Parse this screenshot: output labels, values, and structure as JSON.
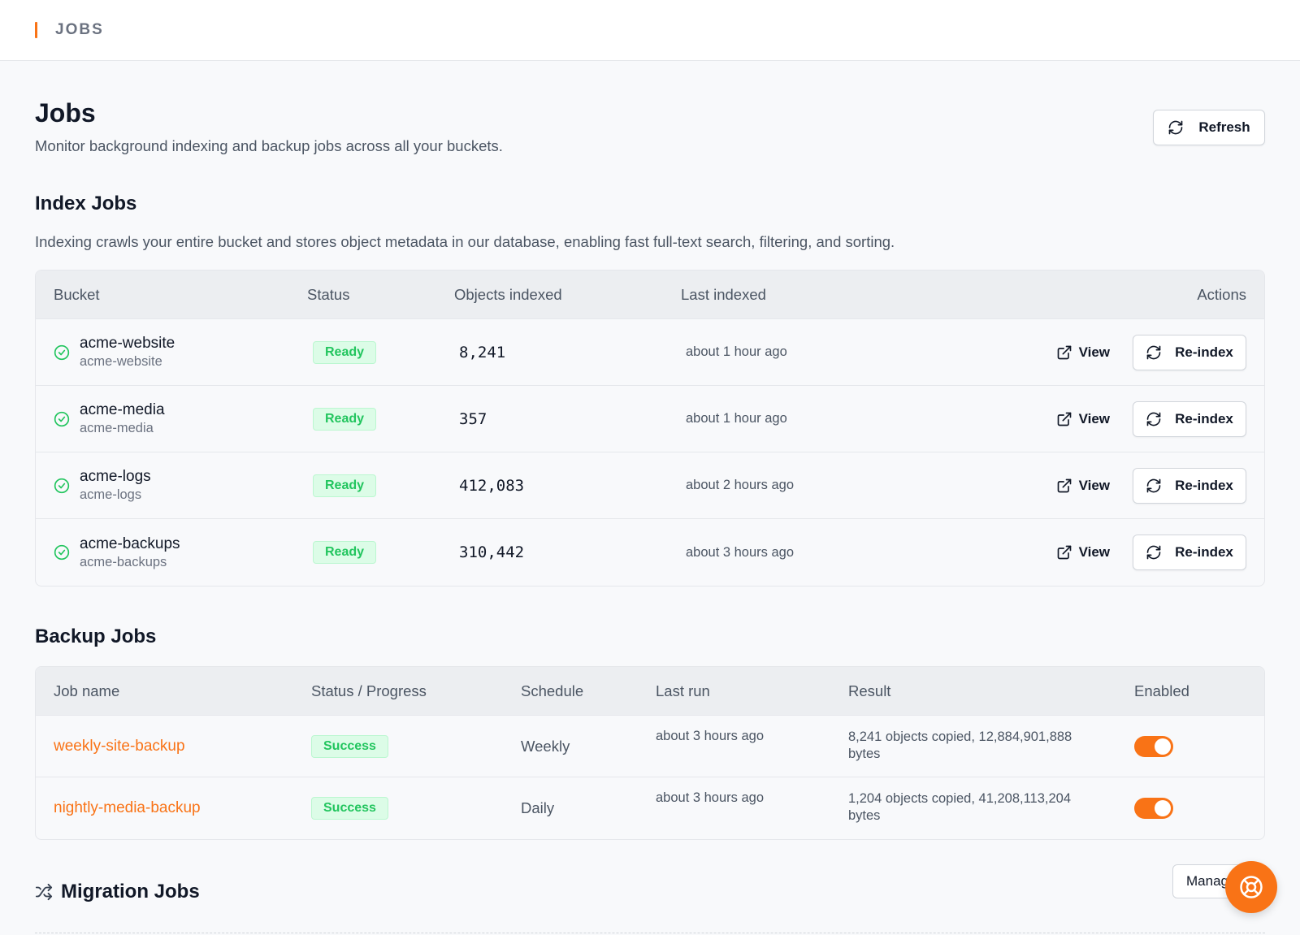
{
  "topbar": {
    "breadcrumb": "JOBS"
  },
  "header": {
    "title": "Jobs",
    "subtitle": "Monitor background indexing and backup jobs across all your buckets.",
    "refresh_label": "Refresh"
  },
  "index_jobs": {
    "title": "Index Jobs",
    "description": "Indexing crawls your entire bucket and stores object metadata in our database, enabling fast full-text search, filtering, and sorting.",
    "columns": {
      "bucket": "Bucket",
      "status": "Status",
      "objects": "Objects indexed",
      "last": "Last indexed",
      "actions": "Actions"
    },
    "view_label": "View",
    "reindex_label": "Re-index",
    "rows": [
      {
        "name": "acme-website",
        "sub": "acme-website",
        "status": "Ready",
        "count": "8,241",
        "last": "about 1 hour ago"
      },
      {
        "name": "acme-media",
        "sub": "acme-media",
        "status": "Ready",
        "count": "357",
        "last": "about 1 hour ago"
      },
      {
        "name": "acme-logs",
        "sub": "acme-logs",
        "status": "Ready",
        "count": "412,083",
        "last": "about 2 hours ago"
      },
      {
        "name": "acme-backups",
        "sub": "acme-backups",
        "status": "Ready",
        "count": "310,442",
        "last": "about 3 hours ago"
      }
    ]
  },
  "backup_jobs": {
    "title": "Backup Jobs",
    "columns": {
      "name": "Job name",
      "status": "Status / Progress",
      "schedule": "Schedule",
      "last": "Last run",
      "result": "Result",
      "enabled": "Enabled"
    },
    "rows": [
      {
        "name": "weekly-site-backup",
        "status": "Success",
        "schedule": "Weekly",
        "last": "about 3 hours ago",
        "result": "8,241 objects copied, 12,884,901,888 bytes",
        "enabled": true
      },
      {
        "name": "nightly-media-backup",
        "status": "Success",
        "schedule": "Daily",
        "last": "about 3 hours ago",
        "result": "1,204 objects copied, 41,208,113,204 bytes",
        "enabled": true
      }
    ]
  },
  "migration_jobs": {
    "title": "Migration Jobs",
    "manage_label": "Manage"
  },
  "colors": {
    "accent": "#f97316",
    "success_bg": "#dcfce7",
    "success_fg": "#22c55e"
  },
  "icons": {
    "refresh": "refresh-icon",
    "view": "external-link-icon",
    "check": "check-circle-icon",
    "shuffle": "shuffle-icon",
    "help": "lifebuoy-icon"
  }
}
